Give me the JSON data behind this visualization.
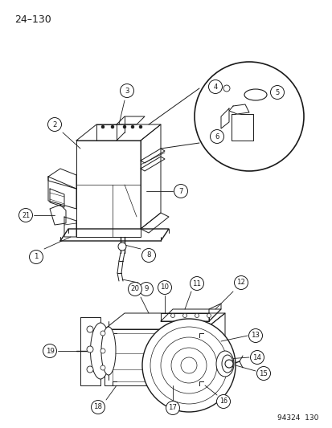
{
  "page_number": "24–130",
  "catalog_number": "94324  130",
  "background_color": "#ffffff",
  "line_color": "#1a1a1a",
  "label_color": "#1a1a1a",
  "fig_width": 4.14,
  "fig_height": 5.33,
  "dpi": 100
}
